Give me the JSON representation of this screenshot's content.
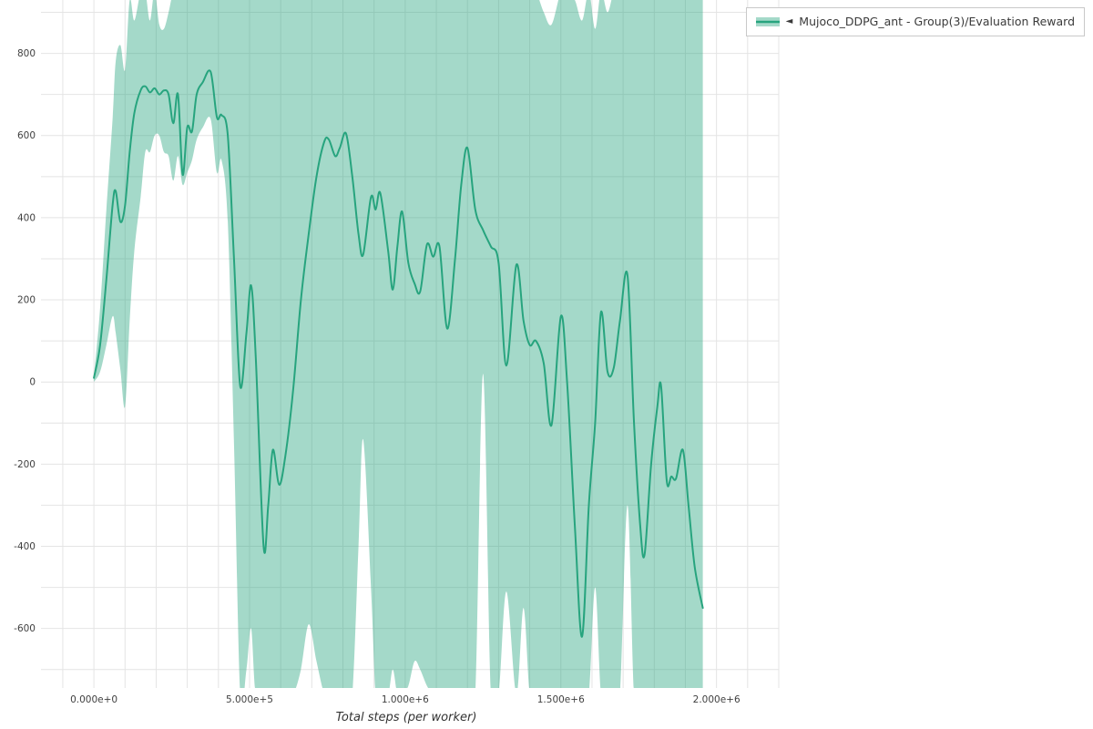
{
  "legend": {
    "marker": "◄",
    "label": "Mujoco_DDPG_ant - Group(3)/Evaluation Reward"
  },
  "chart_data": {
    "type": "line",
    "title": "",
    "xlabel": "Total steps (per worker)",
    "ylabel": "",
    "grid": true,
    "legend_position": "top-right-outside",
    "xlim": [
      -170000,
      2200000
    ],
    "ylim": [
      -745,
      930
    ],
    "x_grid_interval": 100000,
    "y_grid_interval": 100,
    "grid_color": "#e4e4e4",
    "xticks": [
      {
        "v": 0,
        "label": "0.000e+0"
      },
      {
        "v": 500000,
        "label": "5.000e+5"
      },
      {
        "v": 1000000,
        "label": "1.000e+6"
      },
      {
        "v": 1500000,
        "label": "1.500e+6"
      },
      {
        "v": 2000000,
        "label": "2.000e+6"
      }
    ],
    "yticks": [
      {
        "v": -600,
        "label": "-600"
      },
      {
        "v": -400,
        "label": "-400"
      },
      {
        "v": -200,
        "label": "-200"
      },
      {
        "v": 0,
        "label": "0"
      },
      {
        "v": 200,
        "label": "200"
      },
      {
        "v": 400,
        "label": "400"
      },
      {
        "v": 600,
        "label": "600"
      },
      {
        "v": 800,
        "label": "800"
      }
    ],
    "series": [
      {
        "name": "Mujoco_DDPG_ant - Group(3)/Evaluation Reward",
        "line_color": "#27a47e",
        "band_color": "#27a47e",
        "band_opacity": 0.42,
        "x": [
          0,
          20000,
          40000,
          60000,
          70000,
          85000,
          100000,
          115000,
          130000,
          150000,
          165000,
          180000,
          195000,
          210000,
          225000,
          240000,
          255000,
          270000,
          285000,
          300000,
          315000,
          330000,
          350000,
          375000,
          395000,
          410000,
          430000,
          450000,
          470000,
          490000,
          505000,
          520000,
          545000,
          560000,
          575000,
          595000,
          615000,
          640000,
          665000,
          690000,
          715000,
          740000,
          755000,
          775000,
          790000,
          810000,
          830000,
          850000,
          865000,
          890000,
          905000,
          920000,
          945000,
          960000,
          975000,
          990000,
          1010000,
          1030000,
          1048000,
          1070000,
          1090000,
          1110000,
          1135000,
          1160000,
          1180000,
          1200000,
          1225000,
          1250000,
          1275000,
          1300000,
          1325000,
          1357000,
          1380000,
          1400000,
          1420000,
          1445000,
          1470000,
          1500000,
          1520000,
          1545000,
          1568000,
          1590000,
          1610000,
          1629000,
          1650000,
          1670000,
          1690000,
          1714000,
          1735000,
          1755000,
          1769000,
          1790000,
          1810000,
          1822000,
          1840000,
          1855000,
          1870000,
          1892000,
          1910000,
          1930000,
          1956000
        ],
        "mean": [
          10,
          90,
          250,
          430,
          465,
          390,
          430,
          560,
          655,
          710,
          720,
          705,
          715,
          700,
          710,
          700,
          630,
          700,
          505,
          620,
          610,
          700,
          730,
          755,
          645,
          650,
          600,
          300,
          -10,
          120,
          235,
          60,
          -400,
          -300,
          -165,
          -250,
          -180,
          -20,
          200,
          360,
          500,
          585,
          590,
          550,
          570,
          605,
          500,
          360,
          310,
          450,
          420,
          460,
          320,
          225,
          330,
          415,
          290,
          240,
          220,
          335,
          305,
          330,
          130,
          300,
          480,
          570,
          420,
          370,
          330,
          290,
          40,
          285,
          150,
          90,
          100,
          45,
          -105,
          160,
          0,
          -350,
          -620,
          -300,
          -100,
          170,
          25,
          35,
          150,
          260,
          -100,
          -350,
          -420,
          -200,
          -60,
          -10,
          -240,
          -230,
          -235,
          -165,
          -300,
          -450,
          -550
        ],
        "upper": [
          15,
          180,
          420,
          640,
          780,
          820,
          760,
          930,
          880,
          950,
          950,
          880,
          950,
          870,
          860,
          900,
          950,
          950,
          950,
          950,
          950,
          950,
          950,
          950,
          950,
          950,
          950,
          950,
          950,
          950,
          950,
          950,
          950,
          950,
          950,
          950,
          950,
          950,
          950,
          950,
          950,
          950,
          950,
          950,
          950,
          950,
          950,
          950,
          950,
          950,
          950,
          950,
          950,
          950,
          950,
          950,
          950,
          950,
          950,
          950,
          950,
          950,
          950,
          950,
          950,
          950,
          950,
          950,
          950,
          950,
          950,
          950,
          950,
          950,
          950,
          900,
          870,
          950,
          950,
          930,
          880,
          950,
          860,
          950,
          900,
          950,
          950,
          950,
          950,
          950,
          950,
          950,
          950,
          950,
          950,
          950,
          950,
          950,
          950,
          950,
          950
        ],
        "lower": [
          0,
          25,
          90,
          160,
          120,
          30,
          -60,
          150,
          320,
          450,
          560,
          560,
          600,
          600,
          560,
          550,
          490,
          550,
          480,
          510,
          540,
          590,
          620,
          640,
          510,
          540,
          390,
          -150,
          -760,
          -700,
          -600,
          -760,
          -760,
          -760,
          -760,
          -760,
          -760,
          -760,
          -700,
          -590,
          -680,
          -760,
          -760,
          -760,
          -760,
          -760,
          -760,
          -400,
          -140,
          -500,
          -760,
          -760,
          -760,
          -700,
          -760,
          -760,
          -740,
          -680,
          -700,
          -740,
          -760,
          -760,
          -760,
          -760,
          -760,
          -760,
          -760,
          20,
          -760,
          -760,
          -510,
          -760,
          -550,
          -760,
          -760,
          -760,
          -760,
          -760,
          -760,
          -760,
          -760,
          -760,
          -500,
          -760,
          -760,
          -760,
          -760,
          -300,
          -760,
          -760,
          -760,
          -760,
          -760,
          -760,
          -760,
          -760,
          -760,
          -760,
          -760,
          -760,
          -760
        ]
      }
    ]
  }
}
